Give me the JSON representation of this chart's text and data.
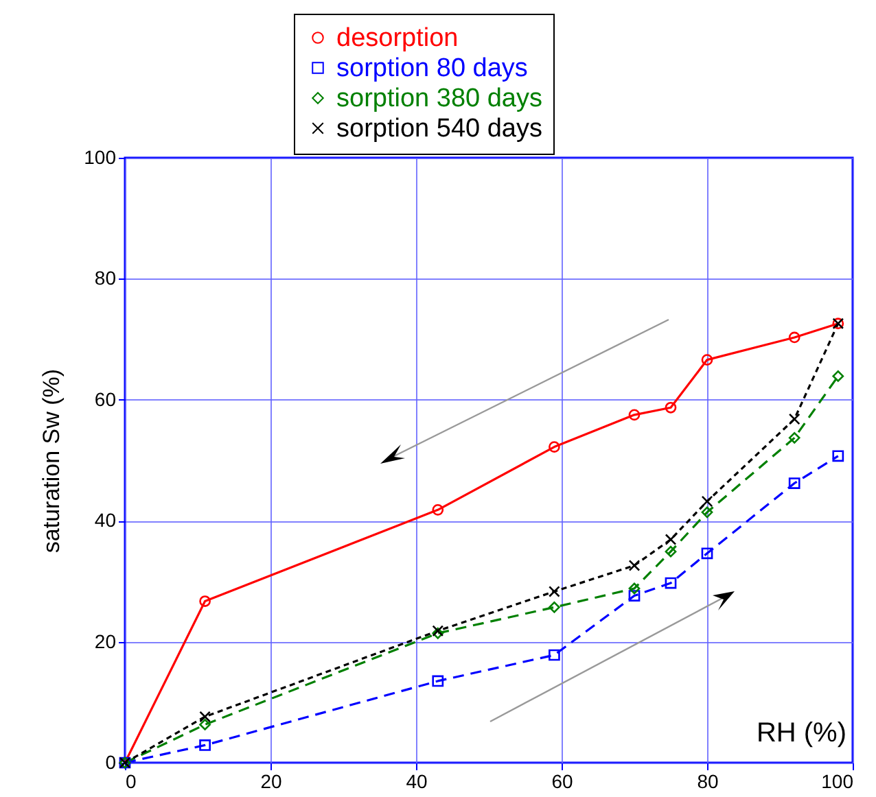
{
  "chart_data": {
    "type": "line",
    "xlabel": "RH (%)",
    "ylabel": "saturation Sw (%)",
    "x": [
      0,
      11,
      43,
      59,
      70,
      75,
      80,
      92,
      98
    ],
    "series": [
      {
        "name": "desorption",
        "color": "#ff0000",
        "marker": "circle",
        "line_style": "solid",
        "values": [
          0,
          26.7,
          41.8,
          52.2,
          57.5,
          58.7,
          66.6,
          70.3,
          72.6
        ]
      },
      {
        "name": "sorption 80 days",
        "color": "#0000ff",
        "marker": "square",
        "line_style": "dashed",
        "values": [
          0,
          2.9,
          13.5,
          17.8,
          27.6,
          29.7,
          34.6,
          46.2,
          50.7
        ]
      },
      {
        "name": "sorption 380 days",
        "color": "#008000",
        "marker": "diamond",
        "line_style": "dashed",
        "values": [
          0,
          6.3,
          21.4,
          25.7,
          28.8,
          34.9,
          41.4,
          53.7,
          63.9
        ]
      },
      {
        "name": "sorption 540 days",
        "color": "#000000",
        "marker": "cross",
        "line_style": "dotted",
        "values": [
          0,
          7.6,
          21.8,
          28.3,
          32.6,
          36.9,
          43.2,
          56.8,
          72.6
        ]
      }
    ],
    "xlim": [
      0,
      100
    ],
    "xticks": [
      0,
      20,
      40,
      60,
      80,
      100
    ],
    "ylim": [
      0,
      100
    ],
    "yticks": [
      0,
      20,
      40,
      60,
      80,
      100
    ],
    "grid": true,
    "legend": "top"
  }
}
